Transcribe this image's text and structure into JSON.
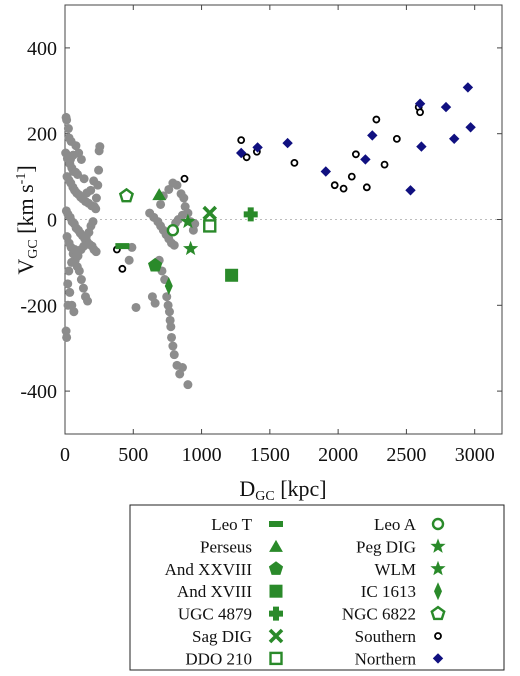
{
  "chart_data": {
    "type": "scatter",
    "xlabel": "D_GC [kpc]",
    "ylabel": "V_GC [km s^-1]",
    "xlim": [
      0,
      3200
    ],
    "ylim": [
      -500,
      500
    ],
    "x_ticks": [
      "0",
      "500",
      "1000",
      "1500",
      "2000",
      "2500",
      "3000"
    ],
    "y_ticks": [
      "400",
      "200",
      "0",
      "-200",
      "-400"
    ],
    "zero_line": true,
    "legend_position": "below",
    "colors": {
      "green": "#2a8a2a",
      "gray": "#8c8c8c",
      "navy": "#101080",
      "black": "#000000"
    },
    "series": [
      {
        "marker": "gray-dot",
        "points": [
          [
            8,
            238
          ],
          [
            12,
            232
          ],
          [
            25,
            212
          ],
          [
            30,
            190
          ],
          [
            45,
            182
          ],
          [
            5,
            155
          ],
          [
            18,
            142
          ],
          [
            35,
            130
          ],
          [
            50,
            120
          ],
          [
            62,
            112
          ],
          [
            78,
            110
          ],
          [
            92,
            105
          ],
          [
            15,
            100
          ],
          [
            28,
            92
          ],
          [
            42,
            85
          ],
          [
            58,
            75
          ],
          [
            70,
            68
          ],
          [
            85,
            62
          ],
          [
            100,
            58
          ],
          [
            115,
            52
          ],
          [
            130,
            48
          ],
          [
            150,
            42
          ],
          [
            172,
            38
          ],
          [
            195,
            32
          ],
          [
            215,
            30
          ],
          [
            225,
            25
          ],
          [
            230,
            50
          ],
          [
            240,
            80
          ],
          [
            246,
            115
          ],
          [
            250,
            160
          ],
          [
            255,
            170
          ],
          [
            210,
            90
          ],
          [
            188,
            68
          ],
          [
            160,
            62
          ],
          [
            140,
            95
          ],
          [
            120,
            140
          ],
          [
            100,
            155
          ],
          [
            80,
            172
          ],
          [
            60,
            150
          ],
          [
            40,
            140
          ],
          [
            10,
            20
          ],
          [
            22,
            12
          ],
          [
            38,
            5
          ],
          [
            52,
            -5
          ],
          [
            68,
            -10
          ],
          [
            82,
            -20
          ],
          [
            98,
            -25
          ],
          [
            112,
            -32
          ],
          [
            128,
            -38
          ],
          [
            145,
            -45
          ],
          [
            162,
            -52
          ],
          [
            180,
            -58
          ],
          [
            198,
            -62
          ],
          [
            212,
            -70
          ],
          [
            228,
            -75
          ],
          [
            15,
            -40
          ],
          [
            30,
            -55
          ],
          [
            45,
            -65
          ],
          [
            60,
            -80
          ],
          [
            75,
            -95
          ],
          [
            90,
            -110
          ],
          [
            105,
            -120
          ],
          [
            120,
            -140
          ],
          [
            135,
            -160
          ],
          [
            150,
            -180
          ],
          [
            165,
            -190
          ],
          [
            20,
            -150
          ],
          [
            35,
            -170
          ],
          [
            50,
            -200
          ],
          [
            65,
            -215
          ],
          [
            8,
            -260
          ],
          [
            12,
            -275
          ],
          [
            22,
            -200
          ],
          [
            28,
            -120
          ],
          [
            48,
            -100
          ],
          [
            72,
            -70
          ],
          [
            95,
            -85
          ],
          [
            118,
            -70
          ],
          [
            138,
            -62
          ],
          [
            155,
            -40
          ],
          [
            175,
            -30
          ],
          [
            190,
            -15
          ],
          [
            205,
            -5
          ],
          [
            620,
            15
          ],
          [
            650,
            5
          ],
          [
            680,
            -5
          ],
          [
            700,
            -15
          ],
          [
            720,
            -25
          ],
          [
            740,
            -35
          ],
          [
            760,
            -45
          ],
          [
            780,
            -55
          ],
          [
            800,
            -60
          ],
          [
            690,
            -95
          ],
          [
            710,
            -120
          ],
          [
            730,
            -140
          ],
          [
            745,
            -180
          ],
          [
            755,
            -200
          ],
          [
            765,
            -215
          ],
          [
            770,
            -235
          ],
          [
            775,
            -250
          ],
          [
            780,
            -275
          ],
          [
            790,
            -295
          ],
          [
            800,
            -315
          ],
          [
            820,
            -340
          ],
          [
            840,
            -360
          ],
          [
            860,
            -345
          ],
          [
            900,
            -385
          ],
          [
            700,
            35
          ],
          [
            720,
            55
          ],
          [
            760,
            70
          ],
          [
            790,
            85
          ],
          [
            820,
            80
          ],
          [
            850,
            60
          ],
          [
            870,
            50
          ],
          [
            880,
            30
          ],
          [
            860,
            10
          ],
          [
            830,
            0
          ],
          [
            810,
            -8
          ],
          [
            900,
            15
          ],
          [
            920,
            -5
          ],
          [
            940,
            -25
          ],
          [
            950,
            -10
          ],
          [
            640,
            -180
          ],
          [
            660,
            -195
          ],
          [
            520,
            -205
          ],
          [
            490,
            -65
          ],
          [
            470,
            -95
          ]
        ]
      },
      {
        "name": "Southern",
        "marker": "open-circle",
        "points": [
          [
            380,
            -70
          ],
          [
            420,
            -115
          ],
          [
            875,
            95
          ],
          [
            1290,
            185
          ],
          [
            1330,
            145
          ],
          [
            1405,
            158
          ],
          [
            1680,
            132
          ],
          [
            1975,
            80
          ],
          [
            2040,
            72
          ],
          [
            2100,
            100
          ],
          [
            2130,
            152
          ],
          [
            2210,
            75
          ],
          [
            2280,
            233
          ],
          [
            2340,
            128
          ],
          [
            2430,
            188
          ],
          [
            2590,
            262
          ],
          [
            2600,
            250
          ]
        ]
      },
      {
        "name": "Northern",
        "marker": "diamond",
        "points": [
          [
            1290,
            155
          ],
          [
            1410,
            168
          ],
          [
            1630,
            178
          ],
          [
            1910,
            112
          ],
          [
            2200,
            140
          ],
          [
            2250,
            196
          ],
          [
            2530,
            68
          ],
          [
            2600,
            270
          ],
          [
            2610,
            170
          ],
          [
            2790,
            262
          ],
          [
            2850,
            188
          ],
          [
            2950,
            308
          ],
          [
            2970,
            215
          ]
        ]
      },
      {
        "name": "Leo T",
        "marker": "dash",
        "points": [
          [
            420,
            -62
          ]
        ]
      },
      {
        "name": "Perseus",
        "marker": "triangle",
        "points": [
          [
            690,
            58
          ]
        ]
      },
      {
        "name": "And XXVIII",
        "marker": "pentagon",
        "points": [
          [
            660,
            -107
          ]
        ]
      },
      {
        "name": "And XVIII",
        "marker": "square",
        "points": [
          [
            1220,
            -130
          ]
        ]
      },
      {
        "name": "UGC 4879",
        "marker": "plus",
        "points": [
          [
            1360,
            12
          ]
        ]
      },
      {
        "name": "Sag DIG",
        "marker": "cross",
        "points": [
          [
            1060,
            15
          ]
        ]
      },
      {
        "name": "DDO 210",
        "marker": "open-square",
        "points": [
          [
            1060,
            -15
          ]
        ]
      },
      {
        "name": "Leo A",
        "marker": "open-circle-green",
        "points": [
          [
            790,
            -25
          ]
        ]
      },
      {
        "name": "Peg DIG",
        "marker": "star",
        "points": [
          [
            900,
            -5
          ]
        ]
      },
      {
        "name": "WLM",
        "marker": "star",
        "points": [
          [
            920,
            -68
          ]
        ]
      },
      {
        "name": "IC 1613",
        "marker": "thin-diamond",
        "points": [
          [
            760,
            -155
          ]
        ]
      },
      {
        "name": "NGC 6822",
        "marker": "open-pentagon",
        "points": [
          [
            450,
            55
          ]
        ]
      }
    ],
    "legend": {
      "left": [
        {
          "label": "Leo T",
          "marker": "dash"
        },
        {
          "label": "Perseus",
          "marker": "triangle"
        },
        {
          "label": "And XXVIII",
          "marker": "pentagon"
        },
        {
          "label": "And XVIII",
          "marker": "square"
        },
        {
          "label": "UGC 4879",
          "marker": "plus"
        },
        {
          "label": "Sag DIG",
          "marker": "cross"
        },
        {
          "label": "DDO 210",
          "marker": "open-square"
        }
      ],
      "right": [
        {
          "label": "Leo A",
          "marker": "open-circle-green"
        },
        {
          "label": "Peg DIG",
          "marker": "star"
        },
        {
          "label": "WLM",
          "marker": "star"
        },
        {
          "label": "IC 1613",
          "marker": "thin-diamond"
        },
        {
          "label": "NGC 6822",
          "marker": "open-pentagon"
        },
        {
          "label": "Southern",
          "marker": "open-circle"
        },
        {
          "label": "Northern",
          "marker": "diamond"
        }
      ]
    }
  }
}
